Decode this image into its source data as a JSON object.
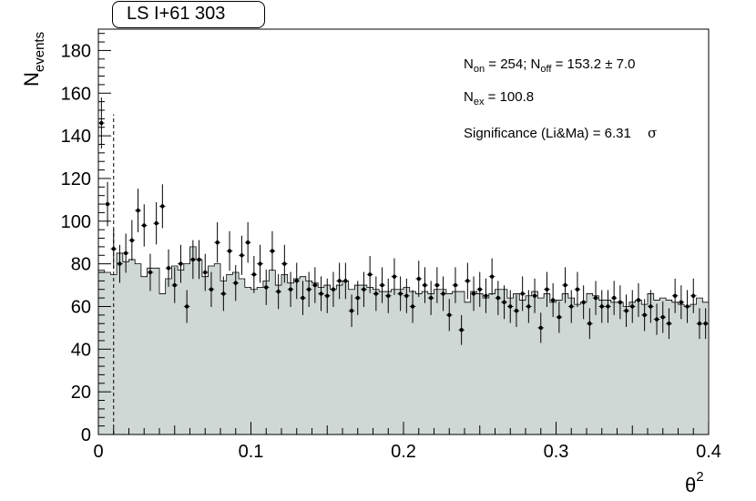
{
  "title": "LS I+61 303",
  "stats": {
    "line1": {
      "n_on_label": "N",
      "n_on_sub": "on",
      "n_on_value": " = 254; N",
      "n_off_sub": "off",
      "n_off_value": " = 153.2  ±  7.0"
    },
    "line2": {
      "label": "N",
      "sub": "ex",
      "value": " = 100.8"
    },
    "line3": {
      "text": "Significance (Li&Ma) = 6.31",
      "unit": "σ"
    }
  },
  "colors": {
    "fill": "#d0d8d6",
    "line": "#000000",
    "background": "#ffffff"
  },
  "chart_data": {
    "type": "bar",
    "title": "LS I+61 303",
    "xlabel": "θ2",
    "ylabel": "Nevents",
    "xlim": [
      0,
      0.4
    ],
    "ylim": [
      0,
      190
    ],
    "xticks": [
      "0",
      "0.1",
      "0.2",
      "0.3",
      "0.4"
    ],
    "yticks": [
      "0",
      "20",
      "40",
      "60",
      "80",
      "100",
      "120",
      "140",
      "160",
      "180"
    ],
    "bin_width": 0.004,
    "cut": 0.01,
    "series": [
      {
        "name": "off",
        "style": "histogram",
        "values": [
          77,
          76,
          75,
          85,
          81,
          82,
          80,
          74,
          78,
          78,
          66,
          73,
          79,
          77,
          80,
          88,
          82,
          74,
          79,
          80,
          72,
          75,
          76,
          73,
          69,
          68,
          69,
          72,
          77,
          70,
          75,
          71,
          73,
          74,
          72,
          71,
          69,
          70,
          68,
          70,
          72,
          68,
          70,
          70,
          69,
          68,
          67,
          67,
          68,
          68,
          69,
          67,
          66,
          67,
          66,
          68,
          68,
          66,
          67,
          67,
          62,
          67,
          66,
          64,
          66,
          68,
          68,
          64,
          66,
          63,
          65,
          67,
          64,
          66,
          62,
          63,
          66,
          64,
          61,
          62,
          66,
          65,
          63,
          63,
          62,
          62,
          60,
          62,
          63,
          61,
          66,
          63,
          64,
          63,
          62,
          61,
          60,
          61,
          64,
          62
        ]
      },
      {
        "name": "on",
        "style": "points",
        "values": [
          146,
          108,
          87,
          80,
          85,
          91,
          105,
          98,
          76,
          99,
          107,
          78,
          70,
          80,
          60,
          82,
          82,
          76,
          68,
          90,
          66,
          86,
          71,
          84,
          90,
          75,
          80,
          69,
          86,
          67,
          80,
          68,
          72,
          64,
          68,
          70,
          66,
          65,
          68,
          72,
          72,
          58,
          64,
          68,
          75,
          66,
          70,
          65,
          74,
          66,
          65,
          60,
          73,
          70,
          64,
          70,
          66,
          56,
          70,
          49,
          72,
          66,
          68,
          65,
          74,
          64,
          62,
          60,
          58,
          66,
          60,
          65,
          50,
          68,
          63,
          55,
          70,
          60,
          68,
          62,
          52,
          64,
          60,
          60,
          64,
          62,
          58,
          60,
          63,
          56,
          60,
          54,
          55,
          52,
          65,
          62,
          60,
          65,
          52,
          52
        ],
        "errors": [
          12,
          10.4,
          9.3,
          8.9,
          9.2,
          9.5,
          10.2,
          9.9,
          8.7,
          9.9,
          10.3,
          8.8,
          8.4,
          8.9,
          7.7,
          9.1,
          9.1,
          8.7,
          8.2,
          9.5,
          8.1,
          9.3,
          8.4,
          9.2,
          9.5,
          8.7,
          8.9,
          8.3,
          9.3,
          8.2,
          8.9,
          8.2,
          8.5,
          8,
          8.2,
          8.4,
          8.1,
          8.1,
          8.2,
          8.5,
          8.5,
          7.6,
          8,
          8.2,
          8.7,
          8.1,
          8.4,
          8.1,
          8.6,
          8.1,
          8.1,
          7.7,
          8.5,
          8.4,
          8,
          8.4,
          8.1,
          7.5,
          8.4,
          7,
          8.5,
          8.1,
          8.2,
          8.1,
          8.6,
          8,
          7.9,
          7.7,
          7.6,
          8.1,
          7.7,
          8.1,
          7.1,
          8.2,
          7.9,
          7.4,
          8.4,
          7.7,
          8.2,
          7.9,
          7.2,
          8,
          7.7,
          7.7,
          8,
          7.9,
          7.6,
          7.7,
          7.9,
          7.5,
          7.7,
          7.3,
          7.4,
          7.2,
          8.1,
          7.9,
          7.7,
          8.1,
          7.2,
          7.2
        ]
      }
    ],
    "grid": false,
    "legend": "none"
  }
}
